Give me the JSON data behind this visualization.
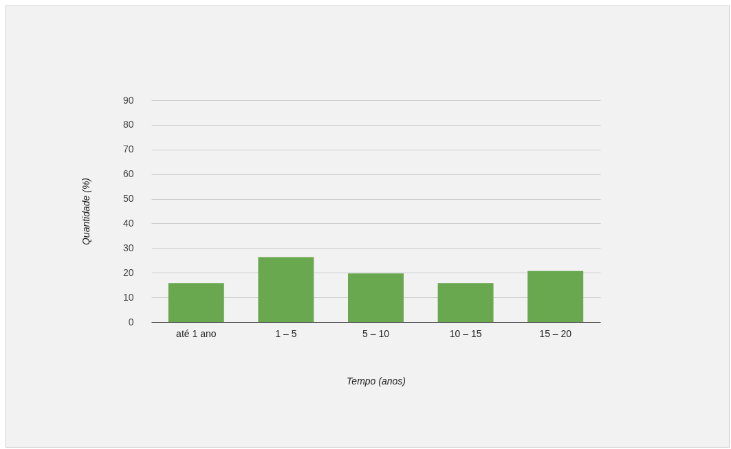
{
  "chart_data": {
    "type": "bar",
    "xlabel": "Tempo (anos)",
    "ylabel": "Quantidade (%)",
    "categories": [
      "até 1 ano",
      "1 – 5",
      "5 – 10",
      "10 – 15",
      "15 – 20"
    ],
    "values": [
      15.8,
      26.3,
      19.7,
      15.8,
      20.7
    ],
    "color": "#6aa84f",
    "ylim": [
      0,
      90
    ],
    "yticks": [
      0,
      10,
      20,
      30,
      40,
      50,
      60,
      70,
      80,
      90
    ],
    "grid": "y"
  }
}
